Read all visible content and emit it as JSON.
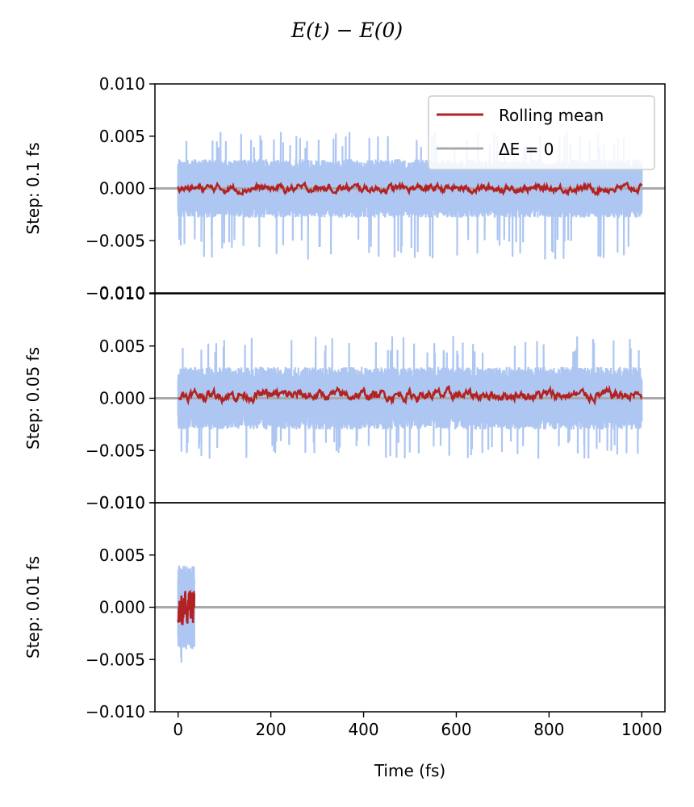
{
  "chart_data": {
    "type": "line",
    "title": "E(t) − E(0)",
    "xlabel": "Time (fs)",
    "xlim": [
      -50,
      1050
    ],
    "xticks": [
      0,
      200,
      400,
      600,
      800,
      1000
    ],
    "ylim": [
      -0.01,
      0.01
    ],
    "yticks": [
      "0.010",
      "0.005",
      "0.000",
      "−0.005",
      "−0.010"
    ],
    "ytick_values": [
      0.01,
      0.005,
      0.0,
      -0.005,
      -0.01
    ],
    "colors": {
      "raw": "#aec7f2",
      "rolling": "#b22222",
      "zero": "#a9a9a9"
    },
    "legend": {
      "placement": "top-right",
      "entries": [
        "Rolling mean",
        "ΔE = 0"
      ]
    },
    "panels": [
      {
        "ylabel": "Step: 0.1 fs",
        "x_range": [
          0,
          1000
        ],
        "raw_band": 0.0028,
        "raw_spike_max": 0.0055,
        "raw_spike_min": -0.0068,
        "rolling_band": 0.0006
      },
      {
        "ylabel": "Step: 0.05 fs",
        "x_range": [
          0,
          1000
        ],
        "raw_band": 0.003,
        "raw_spike_max": 0.006,
        "raw_spike_min": -0.0058,
        "rolling_band": 0.0008
      },
      {
        "ylabel": "Step: 0.01 fs",
        "x_range": [
          0,
          35
        ],
        "raw_band": 0.004,
        "raw_spike_max": 0.0054,
        "raw_spike_min": -0.0054,
        "rolling_band": 0.0012
      }
    ]
  }
}
